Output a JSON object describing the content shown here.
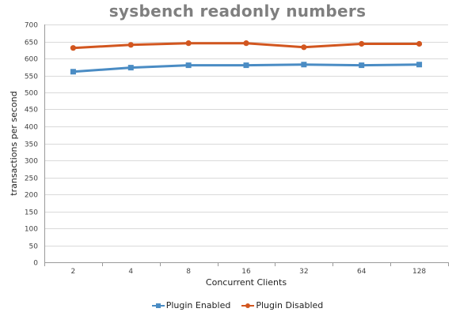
{
  "chart_data": {
    "type": "line",
    "title": "sysbench readonly numbers",
    "xlabel": "Concurrent Clients",
    "ylabel": "transactions per second",
    "categories": [
      "2",
      "4",
      "8",
      "16",
      "32",
      "64",
      "128"
    ],
    "ylim": [
      0,
      700
    ],
    "yticks": [
      0,
      50,
      100,
      150,
      200,
      250,
      300,
      350,
      400,
      450,
      500,
      550,
      600,
      650,
      700
    ],
    "grid": true,
    "legend_position": "bottom",
    "series": [
      {
        "name": "Plugin Enabled",
        "color": "#4a8cc4",
        "marker": "square",
        "values": [
          561,
          573,
          580,
          580,
          582,
          580,
          582
        ]
      },
      {
        "name": "Plugin Disabled",
        "color": "#d2561f",
        "marker": "circle",
        "values": [
          631,
          640,
          645,
          645,
          633,
          643,
          643
        ]
      }
    ]
  }
}
